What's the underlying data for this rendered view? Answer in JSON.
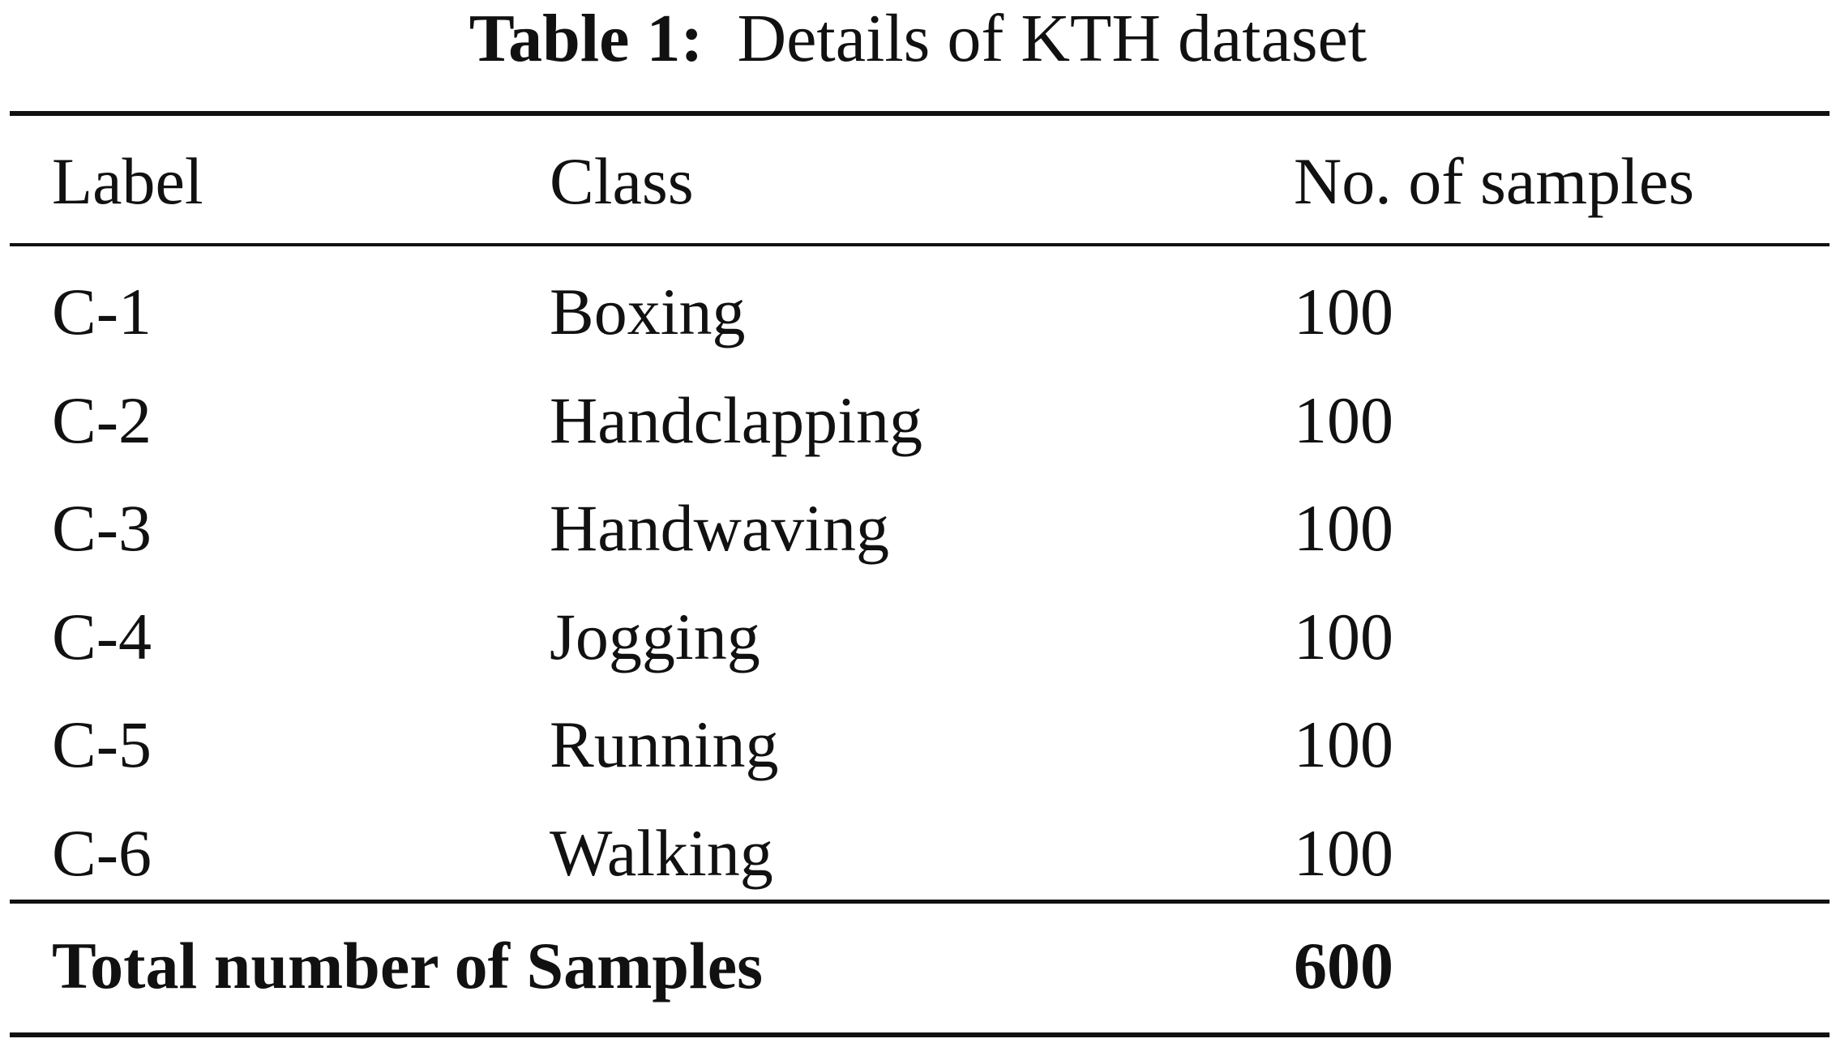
{
  "table": {
    "caption_label": "Table 1:",
    "caption_text": "Details of KTH dataset",
    "headers": [
      "Label",
      "Class",
      "No. of samples"
    ],
    "rows": [
      {
        "label": "C-1",
        "class": "Boxing",
        "samples": "100"
      },
      {
        "label": "C-2",
        "class": "Handclapping",
        "samples": "100"
      },
      {
        "label": "C-3",
        "class": "Handwaving",
        "samples": "100"
      },
      {
        "label": "C-4",
        "class": "Jogging",
        "samples": "100"
      },
      {
        "label": "C-5",
        "class": "Running",
        "samples": "100"
      },
      {
        "label": "C-6",
        "class": "Walking",
        "samples": "100"
      }
    ],
    "total_label": "Total number of Samples",
    "total_value": "600"
  }
}
